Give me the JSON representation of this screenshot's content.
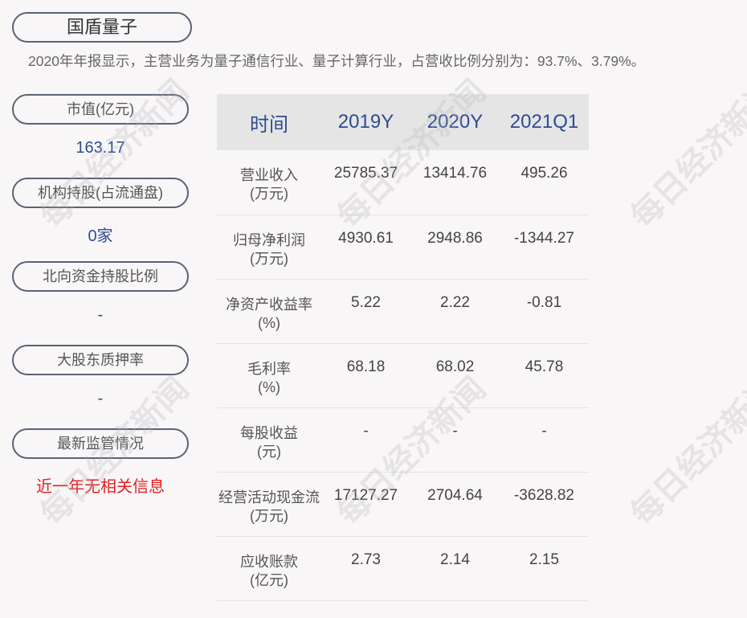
{
  "title": "国盾量子",
  "summary": "2020年年报显示，主营业务为量子通信行业、量子计算行业，占营收比例分别为：93.7%、3.79%。",
  "left_panel": [
    {
      "label": "市值(亿元)",
      "value": "163.17"
    },
    {
      "label": "机构持股(占流通盘)",
      "value": "0家"
    },
    {
      "label": "北向资金持股比例",
      "value": "-"
    },
    {
      "label": "大股东质押率",
      "value": "-"
    },
    {
      "label": "最新监管情况",
      "value": "近一年无相关信息"
    }
  ],
  "table": {
    "headers": [
      "时间",
      "2019Y",
      "2020Y",
      "2021Q1"
    ],
    "rows": [
      {
        "label": "营业收入",
        "unit": "(万元)",
        "values": [
          "25785.37",
          "13414.76",
          "495.26"
        ]
      },
      {
        "label": "归母净利润",
        "unit": "(万元)",
        "values": [
          "4930.61",
          "2948.86",
          "-1344.27"
        ]
      },
      {
        "label": "净资产收益率",
        "unit": "(%)",
        "values": [
          "5.22",
          "2.22",
          "-0.81"
        ]
      },
      {
        "label": "毛利率",
        "unit": "(%)",
        "values": [
          "68.18",
          "68.02",
          "45.78"
        ]
      },
      {
        "label": "每股收益",
        "unit": "(元)",
        "values": [
          "-",
          "-",
          "-"
        ]
      },
      {
        "label": "经营活动现金流",
        "unit": "(万元)",
        "values": [
          "17127.27",
          "2704.64",
          "-3628.82"
        ]
      },
      {
        "label": "应收账款",
        "unit": "(亿元)",
        "values": [
          "2.73",
          "2.14",
          "2.15"
        ]
      }
    ]
  },
  "watermark": "每日经济新闻",
  "colors": {
    "accent": "#2f4b92",
    "alert": "#e02020",
    "header_bg": "#e5e5e5"
  }
}
